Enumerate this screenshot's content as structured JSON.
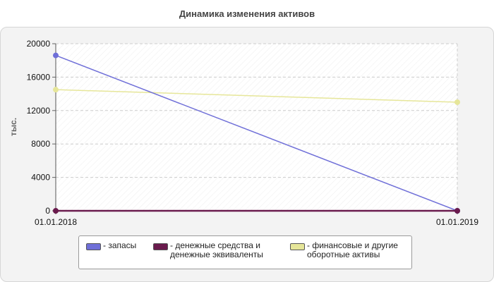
{
  "chart_data": {
    "type": "line",
    "title": "Динамика изменения активов",
    "xlabel": "",
    "ylabel": "тыс.",
    "categories": [
      "01.01.2018",
      "01.01.2019"
    ],
    "ylim": [
      0,
      20000
    ],
    "yticks": [
      "0",
      "4000",
      "8000",
      "12000",
      "16000",
      "20000"
    ],
    "grid": true,
    "legend_position": "bottom",
    "series": [
      {
        "name": "- запасы",
        "color": "#6f6fd8",
        "values": [
          18600,
          0
        ]
      },
      {
        "name": "- денежные средства и\nденежные эквиваленты",
        "color": "#6a1b4d",
        "values": [
          0,
          0
        ]
      },
      {
        "name": "- финансовые и другие\nоборотные активы",
        "color": "#e6e699",
        "values": [
          14500,
          13000
        ]
      }
    ]
  }
}
